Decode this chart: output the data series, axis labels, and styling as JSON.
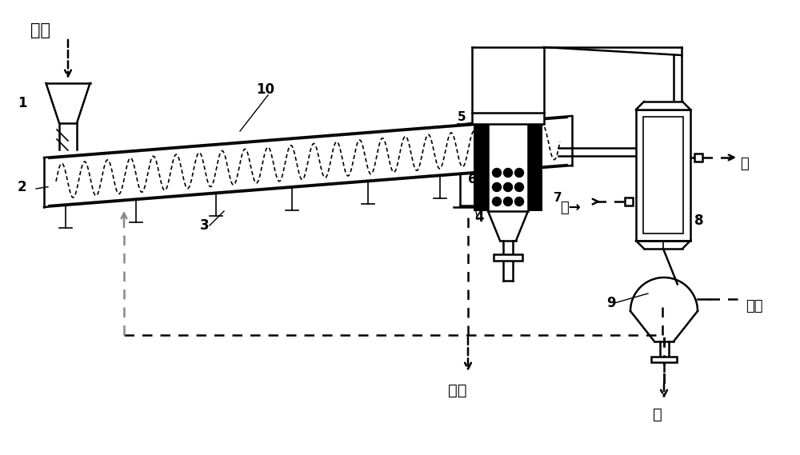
{
  "bg_color": "#ffffff",
  "line_color": "#000000",
  "gray_color": "#888888",
  "labels": {
    "wuliao": "物料",
    "huizha": "灰渣",
    "shui_out": "水",
    "shui_in": "水",
    "you": "油",
    "weiqi": "尾气"
  },
  "numbers": {
    "1": "1",
    "2": "2",
    "3": "3",
    "4": "4",
    "5": "5",
    "6": "6",
    "7": "7",
    "8": "8",
    "9": "9",
    "10": "10"
  }
}
